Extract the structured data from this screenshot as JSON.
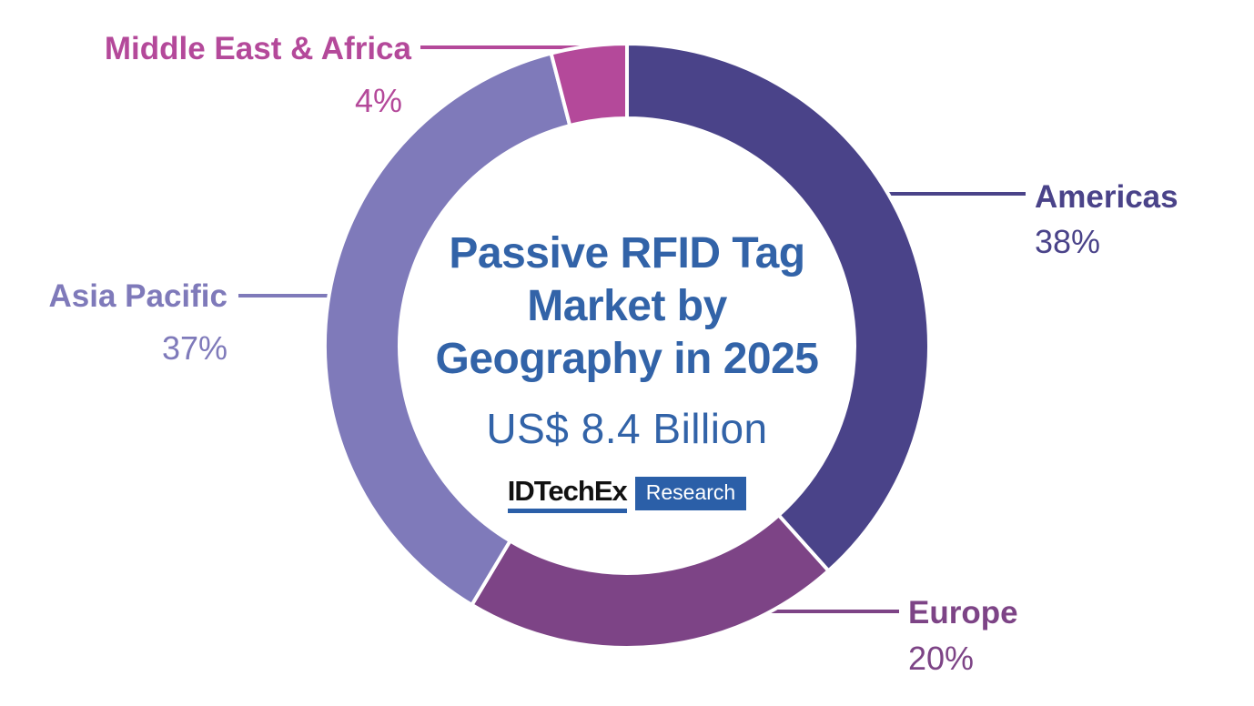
{
  "page": {
    "background": "#FFFFFF"
  },
  "chart_data": {
    "type": "pie",
    "variant": "donut",
    "title": "Passive RFID Tag Market by Geography in 2025",
    "title_lines": [
      "Passive RFID Tag",
      "Market by",
      "Geography in 2025"
    ],
    "subtitle": "US$ 8.4 Billion",
    "unit": "percent share of market value",
    "direction": "clockwise",
    "start_angle_deg": 0,
    "legend_position": "callout-labels",
    "grid": false,
    "segments": [
      {
        "label": "Americas",
        "value": 38,
        "pct_label": "38%",
        "color": "#4A4389"
      },
      {
        "label": "Europe",
        "value": 20,
        "pct_label": "20%",
        "color": "#7D4486"
      },
      {
        "label": "Asia Pacific",
        "value": 37,
        "pct_label": "37%",
        "color": "#7F7ABA"
      },
      {
        "label": "Middle East & Africa",
        "value": 4,
        "pct_label": "4%",
        "color": "#B4499A"
      }
    ]
  },
  "logo": {
    "brand": "IDTechEx",
    "suffix": "Research"
  },
  "colors": {
    "title_text": "#3263A8",
    "logo_bar": "#2B5FA8",
    "logo_text": "#111111",
    "background": "#FFFFFF"
  }
}
